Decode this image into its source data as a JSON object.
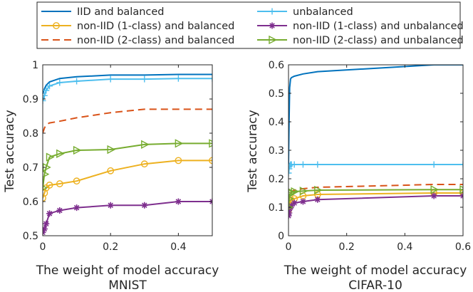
{
  "legend": {
    "entries": [
      {
        "key": "iid_bal",
        "label": "IID and balanced"
      },
      {
        "key": "unbal",
        "label": "unbalanced"
      },
      {
        "key": "n1_bal",
        "label": "non-IID (1-class) and balanced"
      },
      {
        "key": "n1_unbal",
        "label": "non-IID (1-class) and unbalanced"
      },
      {
        "key": "n2_bal",
        "label": "non-IID (2-class) and balanced"
      },
      {
        "key": "n2_unbal",
        "label": "non-IID (2-class) and unbalanced"
      }
    ]
  },
  "styles": {
    "iid_bal": {
      "color": "#0072BD",
      "dash": "",
      "marker": "none"
    },
    "unbal": {
      "color": "#4DBEEE",
      "dash": "",
      "marker": "plus"
    },
    "n1_bal": {
      "color": "#EDB120",
      "dash": "",
      "marker": "circle"
    },
    "n1_unbal": {
      "color": "#7E2F8E",
      "dash": "",
      "marker": "star"
    },
    "n2_bal": {
      "color": "#D95319",
      "dash": "10,6",
      "marker": "none"
    },
    "n2_unbal": {
      "color": "#77AC30",
      "dash": "",
      "marker": "triangle"
    }
  },
  "chart_data": [
    {
      "type": "line",
      "subtitle": "MNIST",
      "xlabel": "The weight of model accuracy",
      "ylabel": "Test accuracy",
      "xlim": [
        0,
        0.5
      ],
      "ylim": [
        0.5,
        1.0
      ],
      "xticks": [
        0,
        0.2,
        0.4
      ],
      "xticklabels": [
        "0",
        "0.2",
        "0.4"
      ],
      "yticks": [
        0.5,
        0.6,
        0.7,
        0.8,
        0.9,
        1.0
      ],
      "yticklabels": [
        "0.5",
        "0.6",
        "0.7",
        "0.8",
        "0.9",
        "1"
      ],
      "series": [
        {
          "key": "iid_bal",
          "x": [
            0,
            0.005,
            0.01,
            0.02,
            0.05,
            0.1,
            0.2,
            0.3,
            0.4,
            0.5
          ],
          "y": [
            0.915,
            0.93,
            0.94,
            0.95,
            0.96,
            0.965,
            0.97,
            0.97,
            0.972,
            0.972
          ]
        },
        {
          "key": "unbal",
          "x": [
            0,
            0.005,
            0.01,
            0.02,
            0.05,
            0.1,
            0.2,
            0.3,
            0.4,
            0.5
          ],
          "y": [
            0.895,
            0.91,
            0.925,
            0.938,
            0.948,
            0.952,
            0.958,
            0.958,
            0.96,
            0.96
          ]
        },
        {
          "key": "n1_bal",
          "x": [
            0,
            0.005,
            0.01,
            0.02,
            0.05,
            0.1,
            0.2,
            0.3,
            0.4,
            0.5
          ],
          "y": [
            0.61,
            0.625,
            0.64,
            0.648,
            0.652,
            0.66,
            0.69,
            0.71,
            0.72,
            0.72
          ]
        },
        {
          "key": "n1_unbal",
          "x": [
            0,
            0.005,
            0.01,
            0.02,
            0.05,
            0.1,
            0.2,
            0.3,
            0.4,
            0.5
          ],
          "y": [
            0.51,
            0.52,
            0.535,
            0.565,
            0.574,
            0.582,
            0.589,
            0.589,
            0.6,
            0.6
          ]
        },
        {
          "key": "n2_bal",
          "x": [
            0,
            0.005,
            0.01,
            0.02,
            0.05,
            0.1,
            0.2,
            0.3,
            0.4,
            0.5
          ],
          "y": [
            0.8,
            0.815,
            0.825,
            0.83,
            0.835,
            0.845,
            0.86,
            0.87,
            0.87,
            0.87
          ]
        },
        {
          "key": "n2_unbal",
          "x": [
            0,
            0.005,
            0.01,
            0.02,
            0.05,
            0.1,
            0.2,
            0.3,
            0.4,
            0.5
          ],
          "y": [
            0.64,
            0.68,
            0.7,
            0.73,
            0.74,
            0.75,
            0.752,
            0.767,
            0.77,
            0.77
          ]
        }
      ]
    },
    {
      "type": "line",
      "subtitle": "CIFAR-10",
      "xlabel": "The weight of model accuracy",
      "ylabel": "Test accuracy",
      "xlim": [
        0,
        0.6
      ],
      "ylim": [
        0,
        0.6
      ],
      "xticks": [
        0,
        0.2,
        0.4,
        0.6
      ],
      "xticklabels": [
        "0",
        "0.2",
        "0.4",
        "0.6"
      ],
      "yticks": [
        0,
        0.1,
        0.2,
        0.3,
        0.4,
        0.5,
        0.6
      ],
      "yticklabels": [
        "0",
        "0.1",
        "0.2",
        "0.3",
        "0.4",
        "0.5",
        "0.6"
      ],
      "series": [
        {
          "key": "iid_bal",
          "x": [
            0,
            0.002,
            0.004,
            0.007,
            0.01,
            0.02,
            0.05,
            0.1,
            0.5,
            0.6
          ],
          "y": [
            0.25,
            0.4,
            0.52,
            0.55,
            0.555,
            0.56,
            0.568,
            0.576,
            0.6,
            0.6
          ]
        },
        {
          "key": "unbal",
          "x": [
            0,
            0.002,
            0.004,
            0.007,
            0.01,
            0.02,
            0.05,
            0.1,
            0.5,
            0.6
          ],
          "y": [
            0.22,
            0.235,
            0.245,
            0.25,
            0.25,
            0.25,
            0.25,
            0.25,
            0.25,
            0.25
          ]
        },
        {
          "key": "n1_bal",
          "x": [
            0,
            0.002,
            0.004,
            0.007,
            0.01,
            0.02,
            0.05,
            0.1,
            0.5,
            0.6
          ],
          "y": [
            0.09,
            0.1,
            0.11,
            0.12,
            0.125,
            0.13,
            0.14,
            0.145,
            0.15,
            0.15
          ]
        },
        {
          "key": "n1_unbal",
          "x": [
            0,
            0.002,
            0.004,
            0.007,
            0.01,
            0.02,
            0.05,
            0.1,
            0.5,
            0.6
          ],
          "y": [
            0.07,
            0.08,
            0.095,
            0.1,
            0.105,
            0.115,
            0.12,
            0.127,
            0.14,
            0.14
          ]
        },
        {
          "key": "n2_bal",
          "x": [
            0,
            0.002,
            0.004,
            0.007,
            0.01,
            0.02,
            0.05,
            0.1,
            0.5,
            0.6
          ],
          "y": [
            0.11,
            0.13,
            0.145,
            0.15,
            0.155,
            0.16,
            0.165,
            0.17,
            0.18,
            0.18
          ]
        },
        {
          "key": "n2_unbal",
          "x": [
            0,
            0.002,
            0.004,
            0.007,
            0.01,
            0.02,
            0.05,
            0.1,
            0.5,
            0.6
          ],
          "y": [
            0.1,
            0.13,
            0.145,
            0.15,
            0.152,
            0.155,
            0.157,
            0.16,
            0.162,
            0.162
          ]
        }
      ]
    }
  ]
}
